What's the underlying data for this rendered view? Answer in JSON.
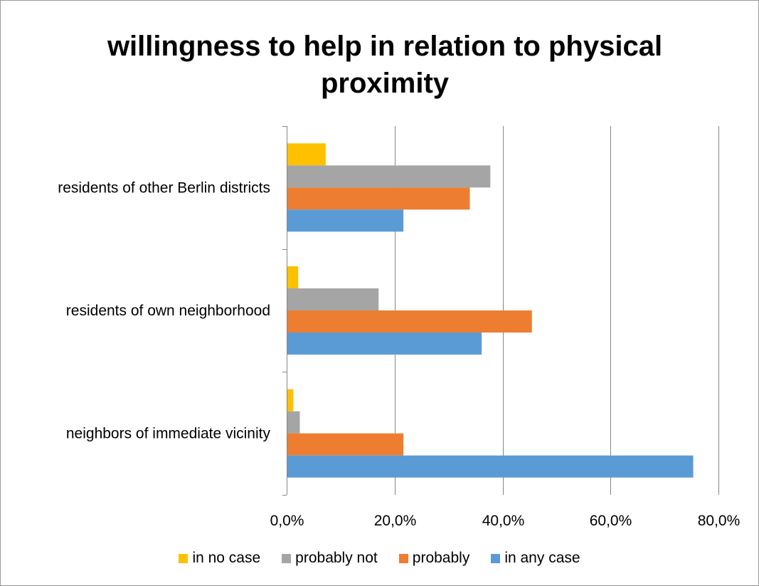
{
  "chart_data": {
    "type": "bar",
    "orientation": "horizontal",
    "title": "willingness to help in relation to physical proximity",
    "categories": [
      "residents of other Berlin districts",
      "residents of own neighborhood",
      "neighbors of immediate vicinity"
    ],
    "x_ticks": [
      "0,0%",
      "20,0%",
      "40,0%",
      "60,0%",
      "80,0%"
    ],
    "xlim": [
      0,
      80
    ],
    "grid": "vertical major gridlines",
    "legend_position": "bottom",
    "series": [
      {
        "name": "in no case",
        "color": "#FFC000",
        "values": [
          7.1,
          2.0,
          1.1
        ]
      },
      {
        "name": "probably not",
        "color": "#A5A5A5",
        "values": [
          37.6,
          16.9,
          2.3
        ]
      },
      {
        "name": "probably",
        "color": "#ED7D31",
        "values": [
          33.8,
          45.3,
          21.5
        ]
      },
      {
        "name": "in any case",
        "color": "#5B9BD5",
        "values": [
          21.5,
          36.0,
          75.2
        ]
      }
    ]
  }
}
